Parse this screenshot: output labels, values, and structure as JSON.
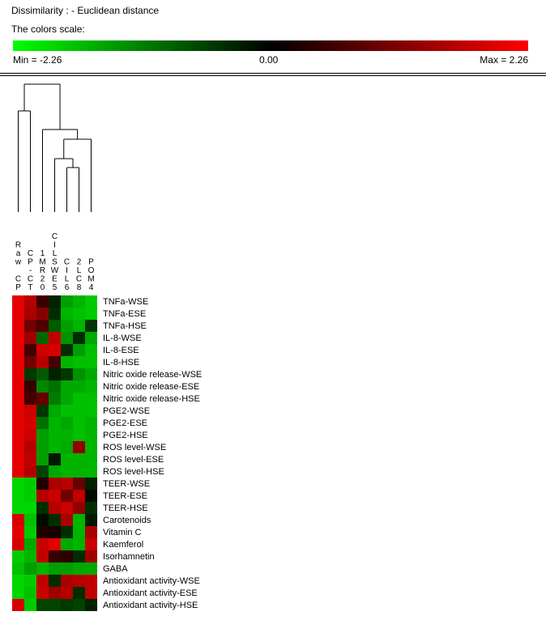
{
  "header": {
    "dissimilarity": "Dissimilarity : - Euclidean distance",
    "scale_title": "The colors scale:",
    "min_label": "Min = -2.26",
    "mid_label": "0.00",
    "max_label": "Max = 2.26"
  },
  "colors": {
    "low": "#00ff00",
    "mid": "#000000",
    "high": "#ff0000"
  },
  "chart_data": {
    "type": "heatmap",
    "scale": {
      "min": -2.26,
      "mid": 0.0,
      "max": 2.26
    },
    "columns": [
      "Raw CP",
      "CP-CT",
      "1MR20",
      "CILSWE5",
      "CIL6",
      "2LC8",
      "POM4"
    ],
    "rows": [
      "TNFa-WSE",
      "TNFa-ESE",
      "TNFa-HSE",
      "IL-8-WSE",
      "IL-8-ESE",
      "IL-8-HSE",
      "Nitric oxide release-WSE",
      "Nitric oxide release-ESE",
      "Nitric oxide release-HSE",
      "PGE2-WSE",
      "PGE2-ESE",
      "PGE2-HSE",
      "ROS level-WSE",
      "ROS level-ESE",
      "ROS level-HSE",
      "TEER-WSE",
      "TEER-ESE",
      "TEER-HSE",
      "Carotenoids",
      "Vitamin C",
      "Kaemferol",
      "Isorhamnetin",
      "GABA",
      "Antioxidant activity-WSE",
      "Antioxidant activity-ESE",
      "Antioxidant activity-HSE"
    ],
    "values": [
      [
        2.0,
        1.6,
        0.5,
        -0.3,
        -1.4,
        -1.6,
        -1.8
      ],
      [
        2.0,
        1.5,
        1.2,
        -0.4,
        -1.6,
        -1.7,
        -1.8
      ],
      [
        2.0,
        1.0,
        0.7,
        -0.8,
        -1.4,
        -1.6,
        -0.5
      ],
      [
        2.0,
        1.4,
        -0.9,
        1.7,
        -1.3,
        -0.4,
        -1.5
      ],
      [
        2.0,
        0.6,
        1.8,
        1.9,
        -0.4,
        -1.4,
        -1.7
      ],
      [
        2.0,
        1.0,
        1.6,
        0.6,
        -1.6,
        -1.7,
        -1.7
      ],
      [
        2.0,
        -0.5,
        -0.8,
        -0.3,
        -0.5,
        -1.3,
        -1.5
      ],
      [
        2.0,
        0.5,
        -1.2,
        -1.0,
        -1.5,
        -1.5,
        -1.6
      ],
      [
        2.0,
        0.6,
        0.9,
        -1.1,
        -1.5,
        -1.7,
        -1.7
      ],
      [
        2.0,
        1.8,
        -0.5,
        -1.5,
        -1.7,
        -1.7,
        -1.7
      ],
      [
        2.0,
        1.9,
        -1.0,
        -1.6,
        -1.5,
        -1.7,
        -1.6
      ],
      [
        2.0,
        1.8,
        -1.4,
        -1.6,
        -1.6,
        -1.7,
        -1.6
      ],
      [
        2.0,
        1.6,
        -1.4,
        -1.6,
        -1.5,
        1.3,
        -1.6
      ],
      [
        2.0,
        1.7,
        -1.4,
        -0.2,
        -1.6,
        -1.6,
        -1.6
      ],
      [
        2.0,
        1.6,
        -0.6,
        -1.5,
        -1.6,
        -1.6,
        -1.6
      ],
      [
        -1.9,
        -1.8,
        0.3,
        1.5,
        1.6,
        0.9,
        -0.3
      ],
      [
        -1.9,
        -1.8,
        1.6,
        1.8,
        1.0,
        1.7,
        -0.1
      ],
      [
        -1.9,
        -1.9,
        -0.4,
        1.6,
        1.8,
        1.3,
        -0.4
      ],
      [
        1.9,
        -1.7,
        -0.1,
        -0.4,
        1.5,
        -1.6,
        -0.2
      ],
      [
        2.0,
        -1.8,
        0.3,
        0.2,
        -0.4,
        -1.6,
        1.5
      ],
      [
        1.9,
        -1.5,
        1.8,
        2.0,
        -1.5,
        -1.6,
        1.8
      ],
      [
        -1.8,
        -1.6,
        1.7,
        0.5,
        0.4,
        -0.4,
        1.4
      ],
      [
        -1.7,
        -1.4,
        -1.6,
        -1.4,
        -1.4,
        -1.5,
        -1.5
      ],
      [
        -1.9,
        -1.8,
        1.7,
        -0.4,
        1.5,
        1.6,
        1.7
      ],
      [
        -1.9,
        -1.7,
        1.8,
        1.4,
        1.6,
        -0.4,
        1.7
      ],
      [
        1.9,
        -1.8,
        -0.6,
        -0.6,
        -0.5,
        -0.6,
        -0.3
      ]
    ]
  }
}
